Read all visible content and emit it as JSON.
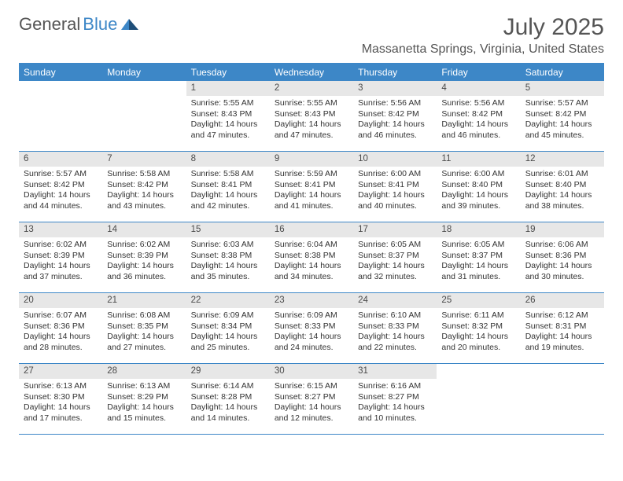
{
  "brand": {
    "text1": "General",
    "text2": "Blue",
    "color1": "#555555",
    "color2": "#3d87c7"
  },
  "title": "July 2025",
  "location": "Massanetta Springs, Virginia, United States",
  "theme": {
    "header_bg": "#3d87c7",
    "header_fg": "#ffffff",
    "daynum_bg": "#e7e7e7",
    "border_color": "#3d87c7",
    "text_color": "#333333",
    "page_bg": "#ffffff"
  },
  "weekdays": [
    "Sunday",
    "Monday",
    "Tuesday",
    "Wednesday",
    "Thursday",
    "Friday",
    "Saturday"
  ],
  "first_weekday_index": 2,
  "days": [
    {
      "n": 1,
      "sunrise": "5:55 AM",
      "sunset": "8:43 PM",
      "daylight": "14 hours and 47 minutes."
    },
    {
      "n": 2,
      "sunrise": "5:55 AM",
      "sunset": "8:43 PM",
      "daylight": "14 hours and 47 minutes."
    },
    {
      "n": 3,
      "sunrise": "5:56 AM",
      "sunset": "8:42 PM",
      "daylight": "14 hours and 46 minutes."
    },
    {
      "n": 4,
      "sunrise": "5:56 AM",
      "sunset": "8:42 PM",
      "daylight": "14 hours and 46 minutes."
    },
    {
      "n": 5,
      "sunrise": "5:57 AM",
      "sunset": "8:42 PM",
      "daylight": "14 hours and 45 minutes."
    },
    {
      "n": 6,
      "sunrise": "5:57 AM",
      "sunset": "8:42 PM",
      "daylight": "14 hours and 44 minutes."
    },
    {
      "n": 7,
      "sunrise": "5:58 AM",
      "sunset": "8:42 PM",
      "daylight": "14 hours and 43 minutes."
    },
    {
      "n": 8,
      "sunrise": "5:58 AM",
      "sunset": "8:41 PM",
      "daylight": "14 hours and 42 minutes."
    },
    {
      "n": 9,
      "sunrise": "5:59 AM",
      "sunset": "8:41 PM",
      "daylight": "14 hours and 41 minutes."
    },
    {
      "n": 10,
      "sunrise": "6:00 AM",
      "sunset": "8:41 PM",
      "daylight": "14 hours and 40 minutes."
    },
    {
      "n": 11,
      "sunrise": "6:00 AM",
      "sunset": "8:40 PM",
      "daylight": "14 hours and 39 minutes."
    },
    {
      "n": 12,
      "sunrise": "6:01 AM",
      "sunset": "8:40 PM",
      "daylight": "14 hours and 38 minutes."
    },
    {
      "n": 13,
      "sunrise": "6:02 AM",
      "sunset": "8:39 PM",
      "daylight": "14 hours and 37 minutes."
    },
    {
      "n": 14,
      "sunrise": "6:02 AM",
      "sunset": "8:39 PM",
      "daylight": "14 hours and 36 minutes."
    },
    {
      "n": 15,
      "sunrise": "6:03 AM",
      "sunset": "8:38 PM",
      "daylight": "14 hours and 35 minutes."
    },
    {
      "n": 16,
      "sunrise": "6:04 AM",
      "sunset": "8:38 PM",
      "daylight": "14 hours and 34 minutes."
    },
    {
      "n": 17,
      "sunrise": "6:05 AM",
      "sunset": "8:37 PM",
      "daylight": "14 hours and 32 minutes."
    },
    {
      "n": 18,
      "sunrise": "6:05 AM",
      "sunset": "8:37 PM",
      "daylight": "14 hours and 31 minutes."
    },
    {
      "n": 19,
      "sunrise": "6:06 AM",
      "sunset": "8:36 PM",
      "daylight": "14 hours and 30 minutes."
    },
    {
      "n": 20,
      "sunrise": "6:07 AM",
      "sunset": "8:36 PM",
      "daylight": "14 hours and 28 minutes."
    },
    {
      "n": 21,
      "sunrise": "6:08 AM",
      "sunset": "8:35 PM",
      "daylight": "14 hours and 27 minutes."
    },
    {
      "n": 22,
      "sunrise": "6:09 AM",
      "sunset": "8:34 PM",
      "daylight": "14 hours and 25 minutes."
    },
    {
      "n": 23,
      "sunrise": "6:09 AM",
      "sunset": "8:33 PM",
      "daylight": "14 hours and 24 minutes."
    },
    {
      "n": 24,
      "sunrise": "6:10 AM",
      "sunset": "8:33 PM",
      "daylight": "14 hours and 22 minutes."
    },
    {
      "n": 25,
      "sunrise": "6:11 AM",
      "sunset": "8:32 PM",
      "daylight": "14 hours and 20 minutes."
    },
    {
      "n": 26,
      "sunrise": "6:12 AM",
      "sunset": "8:31 PM",
      "daylight": "14 hours and 19 minutes."
    },
    {
      "n": 27,
      "sunrise": "6:13 AM",
      "sunset": "8:30 PM",
      "daylight": "14 hours and 17 minutes."
    },
    {
      "n": 28,
      "sunrise": "6:13 AM",
      "sunset": "8:29 PM",
      "daylight": "14 hours and 15 minutes."
    },
    {
      "n": 29,
      "sunrise": "6:14 AM",
      "sunset": "8:28 PM",
      "daylight": "14 hours and 14 minutes."
    },
    {
      "n": 30,
      "sunrise": "6:15 AM",
      "sunset": "8:27 PM",
      "daylight": "14 hours and 12 minutes."
    },
    {
      "n": 31,
      "sunrise": "6:16 AM",
      "sunset": "8:27 PM",
      "daylight": "14 hours and 10 minutes."
    }
  ],
  "labels": {
    "sunrise": "Sunrise:",
    "sunset": "Sunset:",
    "daylight": "Daylight:"
  }
}
